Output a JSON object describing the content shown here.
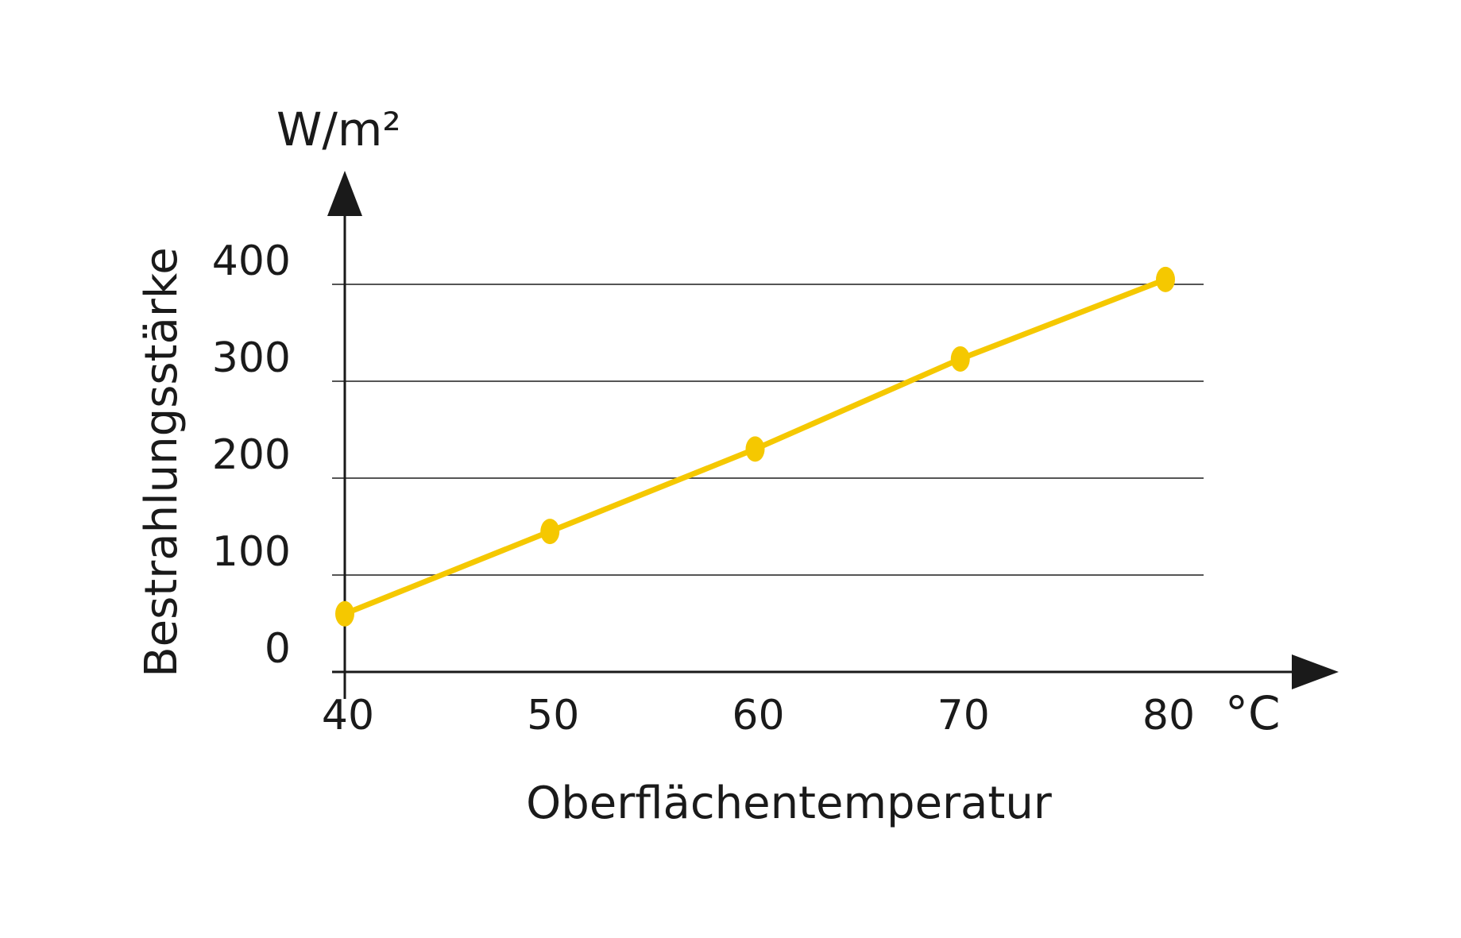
{
  "chart_data": {
    "type": "line",
    "xlabel": "Oberflächentemperatur",
    "ylabel": "Bestrahlungsstärke",
    "x_unit": "°C",
    "y_unit": "W/m²",
    "x": [
      40,
      50,
      60,
      70,
      80
    ],
    "xlim": [
      40,
      80
    ],
    "ylim": [
      0,
      400
    ],
    "x_ticks": [
      "40",
      "50",
      "60",
      "70",
      "80"
    ],
    "y_ticks": [
      "0",
      "100",
      "200",
      "300",
      "400"
    ],
    "grid": "horizontal",
    "series": [
      {
        "values": [
          60,
          145,
          230,
          323,
          405
        ]
      }
    ],
    "colors": {
      "series": "#f5c800",
      "axis": "#1a1a1a",
      "grid": "#555555"
    }
  }
}
